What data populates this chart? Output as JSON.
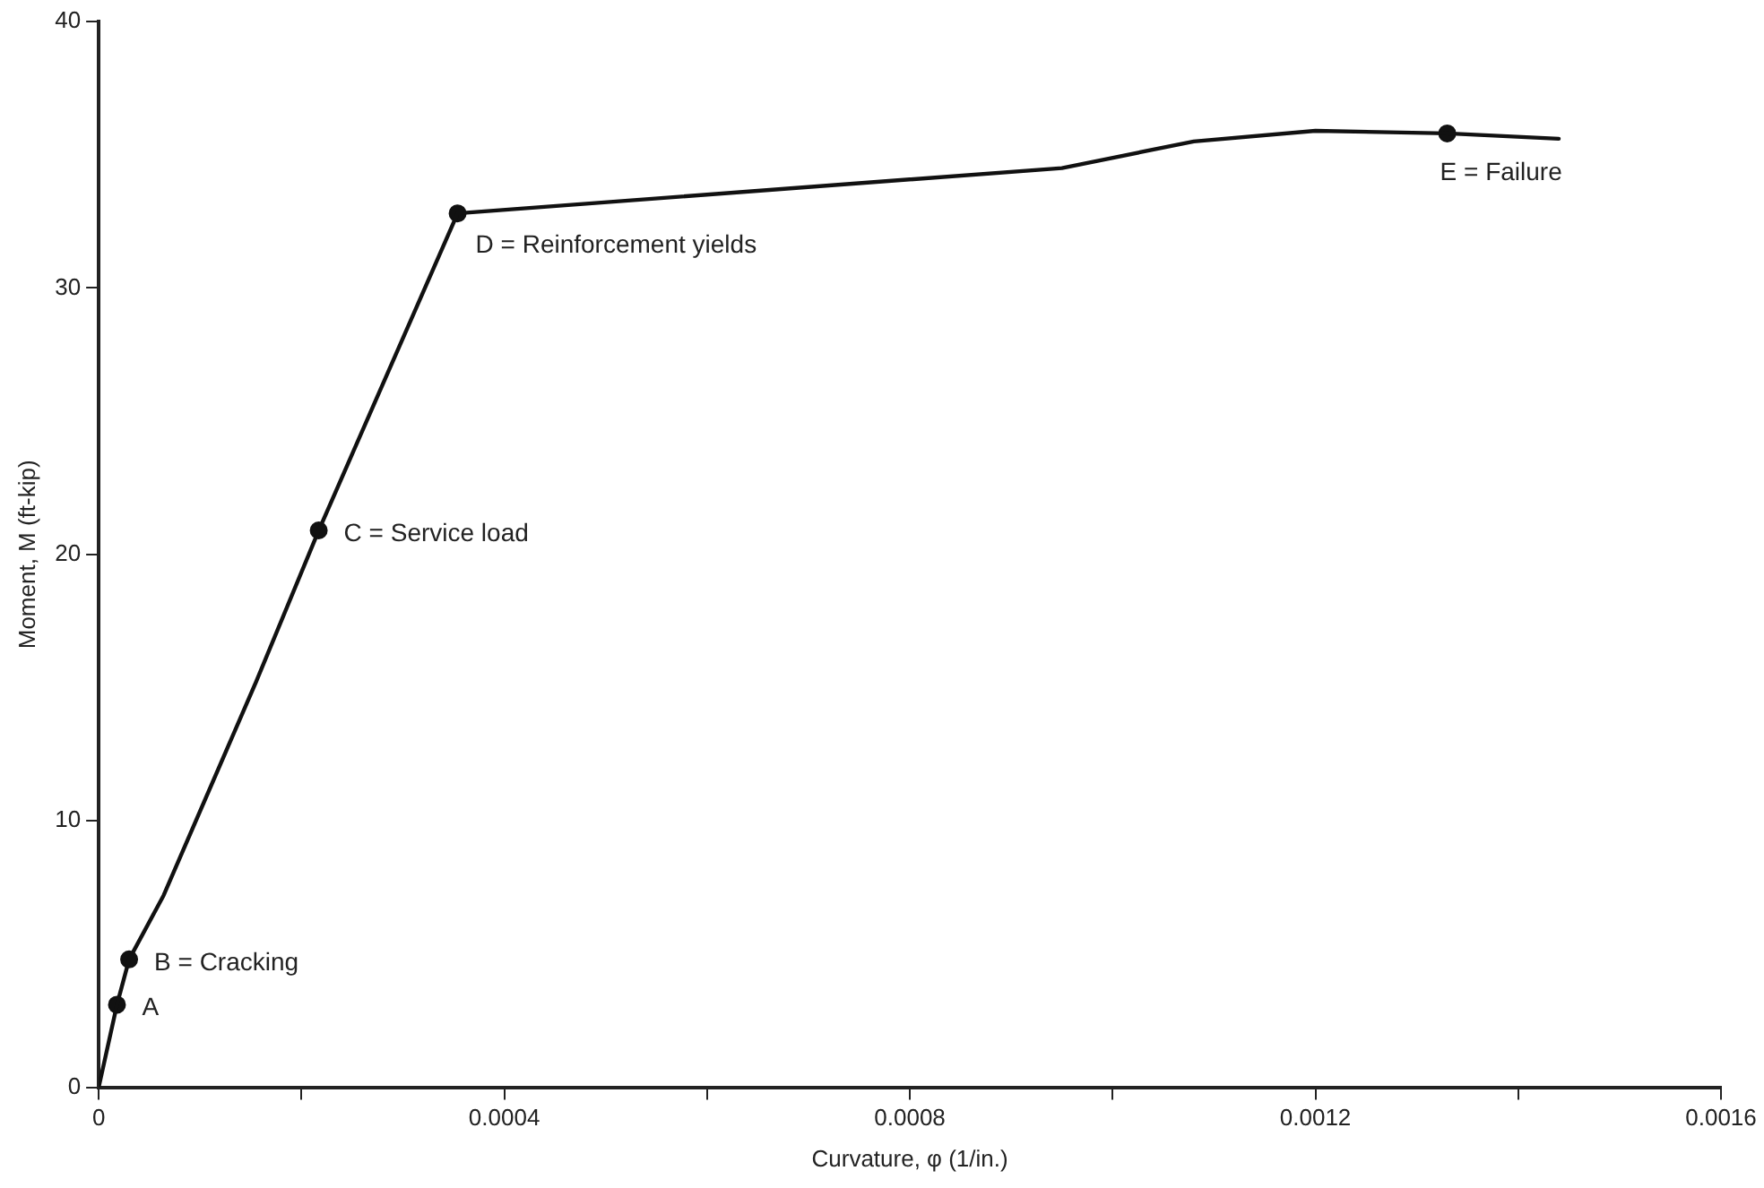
{
  "chart_data": {
    "type": "line",
    "xlabel": "Curvature, φ (1/in.)",
    "ylabel": "Moment, M (ft-kip)",
    "xlim": [
      0,
      0.0016
    ],
    "ylim": [
      0,
      40
    ],
    "xticks": [
      0,
      {
        "value": 0.0002,
        "label": null
      },
      0.0004,
      {
        "value": 0.0006,
        "label": null
      },
      0.0008,
      {
        "value": 0.001,
        "label": null
      },
      0.0012,
      {
        "value": 0.0014,
        "label": null
      },
      0.0016
    ],
    "yticks": [
      0,
      10,
      20,
      30,
      40
    ],
    "grid": false,
    "legend": false,
    "series": [
      {
        "color": "#111111",
        "marker": "none",
        "line_style": "solid",
        "x": [
          0,
          1.8e-05,
          3e-05,
          6.4e-05,
          0.000155,
          0.000217,
          0.000354,
          0.00095,
          0.00108,
          0.0012,
          0.00133,
          0.00144
        ],
        "values": [
          0,
          3.1,
          4.8,
          7.2,
          15.2,
          20.9,
          32.8,
          34.5,
          35.5,
          35.9,
          35.8,
          35.6
        ]
      },
      {
        "type": "scatter",
        "color": "#111111",
        "marker": "circle",
        "x": [
          1.8e-05,
          3e-05,
          0.000217,
          0.000354,
          0.00133
        ],
        "values": [
          3.1,
          4.8,
          20.9,
          32.8,
          35.8
        ]
      }
    ],
    "annotations": [
      {
        "text": "A",
        "x": 1.8e-05,
        "y": 3.1
      },
      {
        "text": "B = Cracking",
        "x": 3e-05,
        "y": 4.8
      },
      {
        "text": "C = Service load",
        "x": 0.000217,
        "y": 20.9
      },
      {
        "text": "D = Reinforcement yields",
        "x": 0.000354,
        "y": 32.8
      },
      {
        "text": "E = Failure",
        "x": 0.00133,
        "y": 35.8
      }
    ]
  }
}
